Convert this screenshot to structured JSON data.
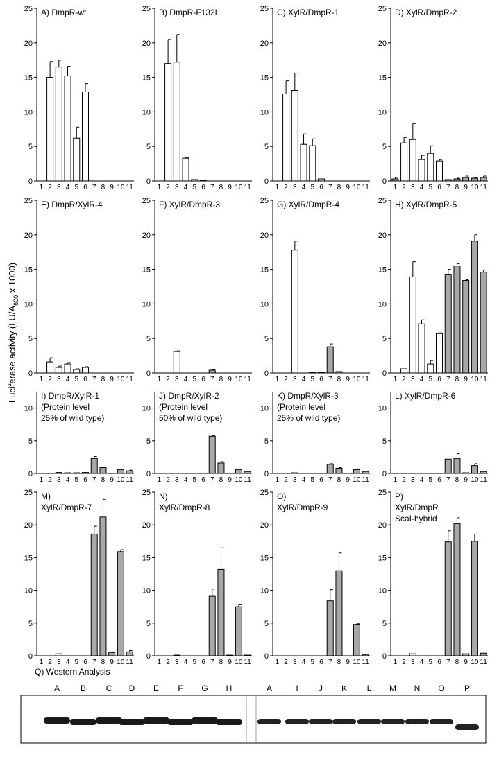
{
  "y_label": [
    "Luciferase activity (LU/A",
    "600",
    " x 1000)"
  ],
  "chart_data": [
    {
      "type": "bar",
      "title": [
        "A) DmpR-wt"
      ],
      "categories": [
        "1",
        "2",
        "3",
        "4",
        "5",
        "6",
        "7",
        "8",
        "9",
        "10",
        "11"
      ],
      "values": [
        0,
        15,
        16.5,
        15.2,
        6.2,
        12.9,
        0,
        0,
        0,
        0,
        0
      ],
      "errors": [
        0,
        2.3,
        1,
        1.4,
        1.6,
        1.2,
        0,
        0,
        0,
        0,
        0
      ],
      "colors": [
        "#ffffff",
        "#ffffff",
        "#ffffff",
        "#ffffff",
        "#ffffff",
        "#ffffff",
        "#ffffff",
        "#ffffff",
        "#ffffff",
        "#ffffff",
        "#ffffff"
      ],
      "ylim": [
        0,
        25
      ],
      "yticks": [
        0,
        5,
        10,
        15,
        20,
        25
      ]
    },
    {
      "type": "bar",
      "title": [
        "B) DmpR-F132L"
      ],
      "categories": [
        "1",
        "2",
        "3",
        "4",
        "5",
        "6",
        "7",
        "8",
        "9",
        "10",
        "11"
      ],
      "values": [
        0,
        17,
        17.2,
        3.3,
        0.2,
        0.05,
        0,
        0,
        0,
        0,
        0
      ],
      "errors": [
        0,
        3.5,
        4,
        0.1,
        0,
        0,
        0,
        0,
        0,
        0,
        0
      ],
      "colors": [
        "#ffffff",
        "#ffffff",
        "#ffffff",
        "#ffffff",
        "#ffffff",
        "#ffffff",
        "#ffffff",
        "#ffffff",
        "#ffffff",
        "#ffffff",
        "#ffffff"
      ],
      "ylim": [
        0,
        25
      ],
      "yticks": [
        0,
        5,
        10,
        15,
        20,
        25
      ]
    },
    {
      "type": "bar",
      "title": [
        "C) XylR/DmpR-1"
      ],
      "categories": [
        "1",
        "2",
        "3",
        "4",
        "5",
        "6",
        "7",
        "8",
        "9",
        "10",
        "11"
      ],
      "values": [
        0,
        12.6,
        13.1,
        5.3,
        5.1,
        0.3,
        0,
        0,
        0,
        0,
        0
      ],
      "errors": [
        0,
        1.9,
        2.5,
        1.5,
        1,
        0,
        0,
        0,
        0,
        0,
        0
      ],
      "colors": [
        "#ffffff",
        "#ffffff",
        "#ffffff",
        "#ffffff",
        "#ffffff",
        "#ffffff",
        "#ffffff",
        "#ffffff",
        "#ffffff",
        "#ffffff",
        "#ffffff"
      ],
      "ylim": [
        0,
        25
      ],
      "yticks": [
        0,
        5,
        10,
        15,
        20,
        25
      ]
    },
    {
      "type": "bar",
      "title": [
        "D) XylR/DmpR-2"
      ],
      "categories": [
        "1",
        "2",
        "3",
        "4",
        "5",
        "6",
        "7",
        "8",
        "9",
        "10",
        "11"
      ],
      "values": [
        0.3,
        5.5,
        6,
        3.1,
        4,
        2.9,
        0.2,
        0.3,
        0.5,
        0.4,
        0.5
      ],
      "errors": [
        0.2,
        0.8,
        2.3,
        0.6,
        1.1,
        0.2,
        0,
        0.1,
        0.2,
        0.1,
        0.2
      ],
      "colors": [
        "#a8a8a8",
        "#ffffff",
        "#ffffff",
        "#ffffff",
        "#ffffff",
        "#ffffff",
        "#a8a8a8",
        "#a8a8a8",
        "#a8a8a8",
        "#a8a8a8",
        "#a8a8a8"
      ],
      "ylim": [
        0,
        25
      ],
      "yticks": [
        0,
        5,
        10,
        15,
        20,
        25
      ]
    },
    {
      "type": "bar",
      "title": [
        "E) DmpR/XylR-4"
      ],
      "categories": [
        "1",
        "2",
        "3",
        "4",
        "5",
        "6",
        "7",
        "8",
        "9",
        "10",
        "11"
      ],
      "values": [
        0,
        1.6,
        0.8,
        1.3,
        0.5,
        0.8,
        0,
        0,
        0,
        0,
        0
      ],
      "errors": [
        0,
        0.6,
        0.2,
        0.2,
        0.1,
        0.1,
        0,
        0,
        0,
        0,
        0
      ],
      "colors": [
        "#ffffff",
        "#ffffff",
        "#ffffff",
        "#ffffff",
        "#ffffff",
        "#ffffff",
        "#ffffff",
        "#ffffff",
        "#ffffff",
        "#ffffff",
        "#ffffff"
      ],
      "ylim": [
        0,
        25
      ],
      "yticks": [
        0,
        5,
        10,
        15,
        20,
        25
      ]
    },
    {
      "type": "bar",
      "title": [
        "F) XylR/DmpR-3"
      ],
      "categories": [
        "1",
        "2",
        "3",
        "4",
        "5",
        "6",
        "7",
        "8",
        "9",
        "10",
        "11"
      ],
      "values": [
        0,
        0,
        3.1,
        0,
        0,
        0,
        0.4,
        0,
        0,
        0,
        0
      ],
      "errors": [
        0,
        0,
        0.1,
        0,
        0,
        0,
        0.1,
        0,
        0,
        0,
        0
      ],
      "colors": [
        "#ffffff",
        "#ffffff",
        "#ffffff",
        "#ffffff",
        "#ffffff",
        "#ffffff",
        "#a8a8a8",
        "#a8a8a8",
        "#a8a8a8",
        "#a8a8a8",
        "#a8a8a8"
      ],
      "ylim": [
        0,
        25
      ],
      "yticks": [
        0,
        5,
        10,
        15,
        20,
        25
      ]
    },
    {
      "type": "bar",
      "title": [
        "G) XylR/DmpR-4"
      ],
      "categories": [
        "1",
        "2",
        "3",
        "4",
        "5",
        "6",
        "7",
        "8",
        "9",
        "10",
        "11"
      ],
      "values": [
        0,
        0,
        17.8,
        0,
        0.05,
        0.1,
        3.8,
        0.2,
        0,
        0,
        0
      ],
      "errors": [
        0,
        0,
        1.3,
        0,
        0,
        0,
        0.4,
        0,
        0,
        0,
        0
      ],
      "colors": [
        "#ffffff",
        "#ffffff",
        "#ffffff",
        "#ffffff",
        "#ffffff",
        "#ffffff",
        "#a8a8a8",
        "#a8a8a8",
        "#a8a8a8",
        "#a8a8a8",
        "#a8a8a8"
      ],
      "ylim": [
        0,
        25
      ],
      "yticks": [
        0,
        5,
        10,
        15,
        20,
        25
      ]
    },
    {
      "type": "bar",
      "title": [
        "H) XylR/DmpR-5"
      ],
      "categories": [
        "1",
        "2",
        "3",
        "4",
        "5",
        "6",
        "7",
        "8",
        "9",
        "10",
        "11"
      ],
      "values": [
        0,
        0.6,
        13.9,
        7.1,
        1.3,
        5.7,
        14.3,
        15.5,
        13.4,
        19.1,
        14.6
      ],
      "errors": [
        0,
        0,
        2.2,
        0.6,
        0.5,
        0.1,
        0.7,
        0.3,
        0.1,
        0.9,
        0.3
      ],
      "colors": [
        "#ffffff",
        "#ffffff",
        "#ffffff",
        "#ffffff",
        "#ffffff",
        "#ffffff",
        "#a8a8a8",
        "#a8a8a8",
        "#a8a8a8",
        "#a8a8a8",
        "#a8a8a8"
      ],
      "ylim": [
        0,
        25
      ],
      "yticks": [
        0,
        5,
        10,
        15,
        20,
        25
      ]
    },
    {
      "type": "bar",
      "title": [
        "I) DmpR/XylR-1",
        "(Protein level",
        "25% of wild type)"
      ],
      "categories": [
        "1",
        "2",
        "3",
        "4",
        "5",
        "6",
        "7",
        "8",
        "9",
        "10",
        "11"
      ],
      "values": [
        0,
        0,
        0.15,
        0.1,
        0.1,
        0.15,
        2.3,
        0.9,
        0,
        0.6,
        0.4
      ],
      "errors": [
        0,
        0,
        0,
        0,
        0,
        0,
        0.3,
        0,
        0,
        0,
        0.1
      ],
      "colors": [
        "#a8a8a8",
        "#a8a8a8",
        "#a8a8a8",
        "#a8a8a8",
        "#a8a8a8",
        "#a8a8a8",
        "#a8a8a8",
        "#a8a8a8",
        "#a8a8a8",
        "#a8a8a8",
        "#a8a8a8"
      ],
      "ylim": [
        0,
        12.5
      ],
      "yticks": [
        0,
        5,
        10
      ]
    },
    {
      "type": "bar",
      "title": [
        "J) DmpR/XylR-2",
        "(Protein level",
        "50% of wild type)"
      ],
      "categories": [
        "1",
        "2",
        "3",
        "4",
        "5",
        "6",
        "7",
        "8",
        "9",
        "10",
        "11"
      ],
      "values": [
        0,
        0,
        0,
        0,
        0,
        0,
        5.7,
        1.6,
        0,
        0.6,
        0.3
      ],
      "errors": [
        0,
        0,
        0,
        0,
        0,
        0,
        0.1,
        0.2,
        0,
        0,
        0
      ],
      "colors": [
        "#a8a8a8",
        "#a8a8a8",
        "#a8a8a8",
        "#a8a8a8",
        "#a8a8a8",
        "#a8a8a8",
        "#a8a8a8",
        "#a8a8a8",
        "#a8a8a8",
        "#a8a8a8",
        "#a8a8a8"
      ],
      "ylim": [
        0,
        12.5
      ],
      "yticks": [
        0,
        5,
        10
      ]
    },
    {
      "type": "bar",
      "title": [
        "K) DmpR/XylR-3",
        "(Protein level",
        "25% of wild type)"
      ],
      "categories": [
        "1",
        "2",
        "3",
        "4",
        "5",
        "6",
        "7",
        "8",
        "9",
        "10",
        "11"
      ],
      "values": [
        0,
        0,
        0.1,
        0,
        0,
        0,
        1.4,
        0.8,
        0,
        0.6,
        0.3
      ],
      "errors": [
        0,
        0,
        0,
        0,
        0,
        0,
        0.1,
        0.1,
        0,
        0.1,
        0
      ],
      "colors": [
        "#a8a8a8",
        "#a8a8a8",
        "#a8a8a8",
        "#a8a8a8",
        "#a8a8a8",
        "#a8a8a8",
        "#a8a8a8",
        "#a8a8a8",
        "#a8a8a8",
        "#a8a8a8",
        "#a8a8a8"
      ],
      "ylim": [
        0,
        12.5
      ],
      "yticks": [
        0,
        5,
        10
      ]
    },
    {
      "type": "bar",
      "title": [
        "L) XylR/DmpR-6"
      ],
      "categories": [
        "1",
        "2",
        "3",
        "4",
        "5",
        "6",
        "7",
        "8",
        "9",
        "10",
        "11"
      ],
      "values": [
        0,
        0,
        0,
        0,
        0,
        0,
        2.2,
        2.3,
        0.1,
        1.2,
        0.3
      ],
      "errors": [
        0,
        0,
        0,
        0,
        0,
        0,
        0,
        0.7,
        0,
        0.3,
        0
      ],
      "colors": [
        "#a8a8a8",
        "#a8a8a8",
        "#a8a8a8",
        "#a8a8a8",
        "#a8a8a8",
        "#a8a8a8",
        "#a8a8a8",
        "#a8a8a8",
        "#a8a8a8",
        "#a8a8a8",
        "#a8a8a8"
      ],
      "ylim": [
        0,
        12.5
      ],
      "yticks": [
        0,
        5,
        10
      ]
    },
    {
      "type": "bar",
      "title": [
        "M)",
        "XylR/DmpR-7"
      ],
      "categories": [
        "1",
        "2",
        "3",
        "4",
        "5",
        "6",
        "7",
        "8",
        "9",
        "10",
        "11"
      ],
      "values": [
        0,
        0,
        0.3,
        0,
        0,
        0,
        18.6,
        21.2,
        0.5,
        15.9,
        0.6
      ],
      "errors": [
        0,
        0,
        0,
        0,
        0,
        0,
        1.2,
        2.7,
        0.1,
        0.3,
        0.2
      ],
      "colors": [
        "#ffffff",
        "#ffffff",
        "#ffffff",
        "#ffffff",
        "#ffffff",
        "#ffffff",
        "#a8a8a8",
        "#a8a8a8",
        "#a8a8a8",
        "#a8a8a8",
        "#a8a8a8"
      ],
      "ylim": [
        0,
        25
      ],
      "yticks": [
        0,
        5,
        10,
        15,
        20,
        25
      ]
    },
    {
      "type": "bar",
      "title": [
        "N)",
        "XylR/DmpR-8"
      ],
      "categories": [
        "1",
        "2",
        "3",
        "4",
        "5",
        "6",
        "7",
        "8",
        "9",
        "10",
        "11"
      ],
      "values": [
        0,
        0,
        0.1,
        0,
        0,
        0,
        9.1,
        13.2,
        0.1,
        7.5,
        0.1
      ],
      "errors": [
        0,
        0,
        0,
        0,
        0,
        0,
        1.1,
        3.3,
        0,
        0.3,
        0
      ],
      "colors": [
        "#ffffff",
        "#ffffff",
        "#ffffff",
        "#ffffff",
        "#ffffff",
        "#ffffff",
        "#a8a8a8",
        "#a8a8a8",
        "#a8a8a8",
        "#a8a8a8",
        "#a8a8a8"
      ],
      "ylim": [
        0,
        25
      ],
      "yticks": [
        0,
        5,
        10,
        15,
        20,
        25
      ]
    },
    {
      "type": "bar",
      "title": [
        "O)",
        "XylR/DmpR-9"
      ],
      "categories": [
        "1",
        "2",
        "3",
        "4",
        "5",
        "6",
        "7",
        "8",
        "9",
        "10",
        "11"
      ],
      "values": [
        0,
        0,
        0,
        0,
        0,
        0,
        8.4,
        13,
        0,
        4.8,
        0.2
      ],
      "errors": [
        0,
        0,
        0,
        0,
        0,
        0,
        1.7,
        2.7,
        0,
        0.1,
        0
      ],
      "colors": [
        "#ffffff",
        "#ffffff",
        "#ffffff",
        "#ffffff",
        "#ffffff",
        "#ffffff",
        "#a8a8a8",
        "#a8a8a8",
        "#a8a8a8",
        "#a8a8a8",
        "#a8a8a8"
      ],
      "ylim": [
        0,
        25
      ],
      "yticks": [
        0,
        5,
        10,
        15,
        20,
        25
      ]
    },
    {
      "type": "bar",
      "title": [
        "P)",
        "XylR/DmpR",
        "ScaI-hybrid"
      ],
      "categories": [
        "1",
        "2",
        "3",
        "4",
        "5",
        "6",
        "7",
        "8",
        "9",
        "10",
        "11"
      ],
      "values": [
        0,
        0,
        0.3,
        0,
        0,
        0,
        17.4,
        20.2,
        0.3,
        17.5,
        0.4
      ],
      "errors": [
        0,
        0,
        0,
        0,
        0,
        0,
        1.7,
        0.9,
        0,
        1.1,
        0
      ],
      "colors": [
        "#ffffff",
        "#ffffff",
        "#ffffff",
        "#ffffff",
        "#ffffff",
        "#ffffff",
        "#a8a8a8",
        "#a8a8a8",
        "#a8a8a8",
        "#a8a8a8",
        "#a8a8a8"
      ],
      "ylim": [
        0,
        25
      ],
      "yticks": [
        0,
        5,
        10,
        15,
        20,
        25
      ]
    }
  ],
  "western": {
    "title": "Q) Western Analysis",
    "lanes_left": [
      "A",
      "B",
      "C",
      "D",
      "E",
      "F",
      "G",
      "H"
    ],
    "lanes_right": [
      "A",
      "I",
      "J",
      "K",
      "L",
      "M",
      "N",
      "O",
      "P"
    ]
  }
}
